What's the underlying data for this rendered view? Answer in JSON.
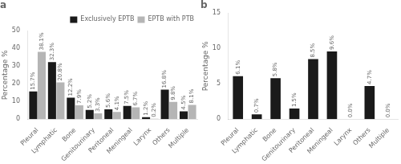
{
  "chart_data": [
    {
      "type": "bar",
      "title": "a",
      "categories": [
        "Pleural",
        "Lymphatic",
        "Bone",
        "Genitourinary",
        "Peritoneal",
        "Meningeal",
        "Larynx",
        "Others",
        "Multiple"
      ],
      "series": [
        {
          "name": "Exclusively EPTB",
          "color": "#1a1a1a",
          "values": [
            15.7,
            32.3,
            12.2,
            5.2,
            5.6,
            7.5,
            1.2,
            16.8,
            4.5
          ],
          "value_labels": [
            "15.7%",
            "32.3%",
            "12.2%",
            "5.2%",
            "5.6%",
            "7.5%",
            "1.2%",
            "16.8%",
            "4.5%"
          ]
        },
        {
          "name": "EPTB with PTB",
          "color": "#b5b5b5",
          "values": [
            38.1,
            20.8,
            7.9,
            3.3,
            4.1,
            6.7,
            0.2,
            9.8,
            8.1
          ],
          "value_labels": [
            "38.1%",
            "20.8%",
            "7.9%",
            "3.3%",
            "4.1%",
            "6.7%",
            "0.2%",
            "9.8%",
            "8.1%"
          ]
        }
      ],
      "ylabel": "Percentage %",
      "ylim": [
        0,
        50
      ],
      "yticks": [
        0,
        10,
        20,
        30,
        40,
        50
      ],
      "legend": "upper right",
      "data_labels": true,
      "grid": false
    },
    {
      "type": "bar",
      "title": "b",
      "categories": [
        "Pleural",
        "Lymphatic",
        "Bone",
        "Genitourinary",
        "Peritoneal",
        "Meningeal",
        "Larynx",
        "Others",
        "Multiple"
      ],
      "values": [
        6.1,
        0.7,
        5.8,
        1.5,
        8.5,
        9.6,
        0.0,
        4.7,
        0.0
      ],
      "value_labels": [
        "6.1%",
        "0.7%",
        "5.8%",
        "1.5%",
        "8.5%",
        "9.6%",
        "0.0%",
        "4.7%",
        "0.0%"
      ],
      "color": "#1a1a1a",
      "ylabel": "Percentage %",
      "ylim": [
        0,
        15
      ],
      "yticks": [
        0,
        5,
        10,
        15
      ],
      "data_labels": true,
      "grid": false
    }
  ]
}
